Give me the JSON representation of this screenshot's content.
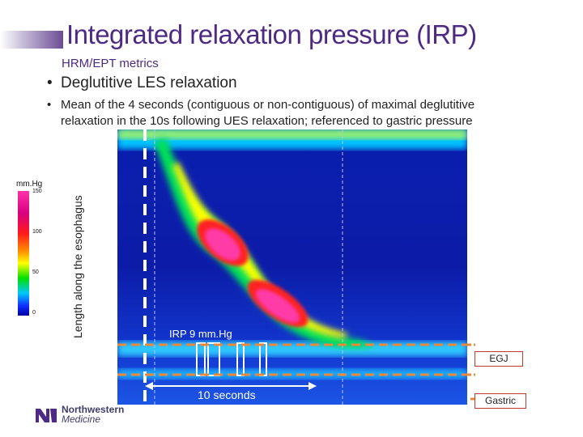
{
  "slide": {
    "title": "Integrated relaxation pressure (IRP)",
    "subtitle": "HRM/EPT metrics",
    "bullet_main": "Deglutitive LES relaxation",
    "bullet_sub_line1": "Mean of the 4 seconds (contiguous or non-contiguous) of maximal deglutitive",
    "bullet_sub_line2": "relaxation in the 10s following UES relaxation; referenced to gastric pressure"
  },
  "colorbar": {
    "unit": "mm.Hg",
    "ticks": [
      "150",
      "100",
      "50",
      "0"
    ]
  },
  "figure": {
    "y_axis_label": "Length along the esophagus",
    "irp_label": "IRP 9 mm.Hg",
    "time_label": "10 seconds",
    "egj_label": "EGJ",
    "gastric_label": "Gastric"
  },
  "logo": {
    "line1": "Northwestern",
    "line2": "Medicine"
  },
  "colors": {
    "title": "#4e2a84",
    "marker_dash": "#e8893a",
    "box_border": "#c0392b"
  }
}
